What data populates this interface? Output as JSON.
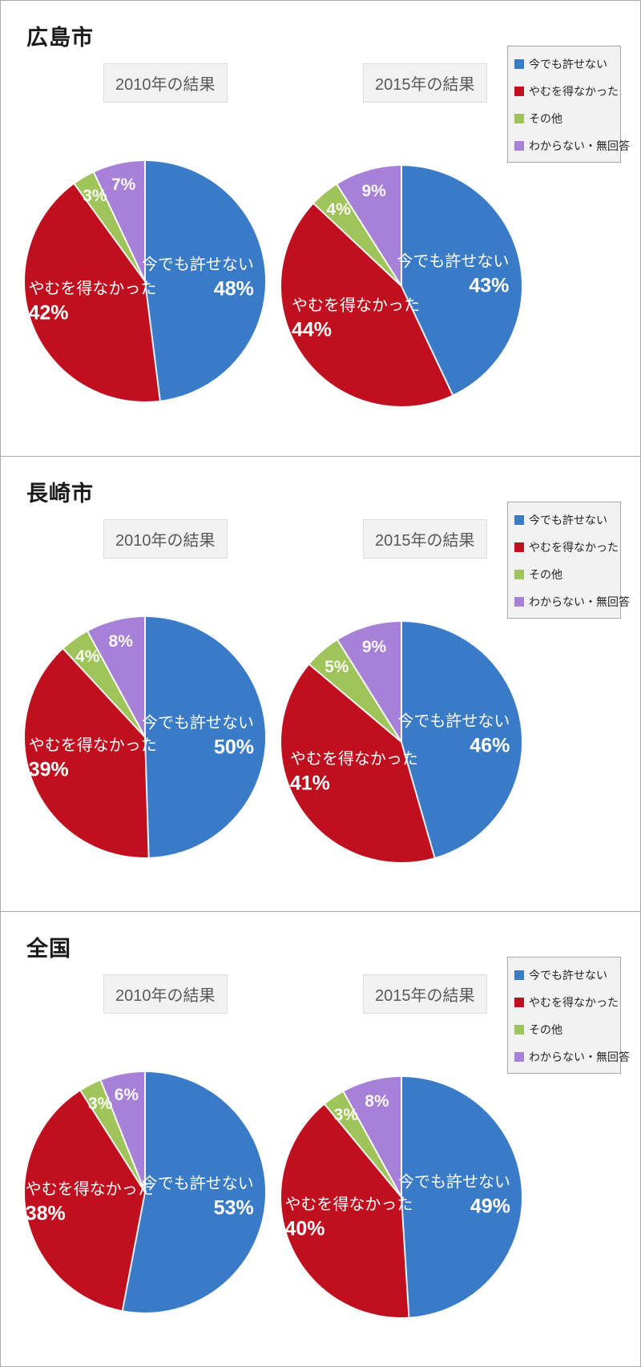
{
  "colors": {
    "blue": "#3a7bc8",
    "red": "#c00f1e",
    "green": "#9ec45a",
    "purple": "#a780d8",
    "panel_border": "#a9a9a9",
    "yearbox_bg": "#f2f2f2",
    "legend_bg": "#f2f2f2",
    "slice_label": "#ffffff"
  },
  "legend": {
    "items": [
      {
        "key": "blue",
        "label": "今でも許せない"
      },
      {
        "key": "red",
        "label": "やむを得なかった"
      },
      {
        "key": "green",
        "label": "その他"
      },
      {
        "key": "purple",
        "label": "わからない・無回答"
      }
    ]
  },
  "sections": [
    {
      "title": "広島市",
      "charts": [
        {
          "year_label": "2010年の結果",
          "slices": [
            {
              "label": "今でも許せない",
              "value": 48,
              "pct": "48%"
            },
            {
              "label": "やむを得なかった",
              "value": 42,
              "pct": "42%"
            },
            {
              "label": "その他",
              "value": 3,
              "pct": "3%"
            },
            {
              "label": "わからない・無回答",
              "value": 7,
              "pct": "7%"
            }
          ]
        },
        {
          "year_label": "2015年の結果",
          "slices": [
            {
              "label": "今でも許せない",
              "value": 43,
              "pct": "43%"
            },
            {
              "label": "やむを得なかった",
              "value": 44,
              "pct": "44%"
            },
            {
              "label": "その他",
              "value": 4,
              "pct": "4%"
            },
            {
              "label": "わからない・無回答",
              "value": 9,
              "pct": "9%"
            }
          ]
        }
      ]
    },
    {
      "title": "長崎市",
      "charts": [
        {
          "year_label": "2010年の結果",
          "slices": [
            {
              "label": "今でも許せない",
              "value": 50,
              "pct": "50%"
            },
            {
              "label": "やむを得なかった",
              "value": 39,
              "pct": "39%"
            },
            {
              "label": "その他",
              "value": 4,
              "pct": "4%"
            },
            {
              "label": "わからない・無回答",
              "value": 8,
              "pct": "8%"
            }
          ]
        },
        {
          "year_label": "2015年の結果",
          "slices": [
            {
              "label": "今でも許せない",
              "value": 46,
              "pct": "46%"
            },
            {
              "label": "やむを得なかった",
              "value": 41,
              "pct": "41%"
            },
            {
              "label": "その他",
              "value": 5,
              "pct": "5%"
            },
            {
              "label": "わからない・無回答",
              "value": 9,
              "pct": "9%"
            }
          ]
        }
      ]
    },
    {
      "title": "全国",
      "charts": [
        {
          "year_label": "2010年の結果",
          "slices": [
            {
              "label": "今でも許せない",
              "value": 53,
              "pct": "53%"
            },
            {
              "label": "やむを得なかった",
              "value": 38,
              "pct": "38%"
            },
            {
              "label": "その他",
              "value": 3,
              "pct": "3%"
            },
            {
              "label": "わからない・無回答",
              "value": 6,
              "pct": "6%"
            }
          ]
        },
        {
          "year_label": "2015年の結果",
          "slices": [
            {
              "label": "今でも許せない",
              "value": 49,
              "pct": "49%"
            },
            {
              "label": "やむを得なかった",
              "value": 40,
              "pct": "40%"
            },
            {
              "label": "その他",
              "value": 3,
              "pct": "3%"
            },
            {
              "label": "わからない・無回答",
              "value": 8,
              "pct": "8%"
            }
          ]
        }
      ]
    }
  ],
  "chart_data": [
    {
      "type": "pie",
      "section": "広島市",
      "title": "2010年の結果",
      "labels": [
        "今でも許せない",
        "やむを得なかった",
        "その他",
        "わからない・無回答"
      ],
      "values": [
        48,
        42,
        3,
        7
      ],
      "colors": [
        "#3a7bc8",
        "#c00f1e",
        "#9ec45a",
        "#a780d8"
      ],
      "start_angle": "top",
      "direction": "clockwise",
      "legend_position": "right"
    },
    {
      "type": "pie",
      "section": "広島市",
      "title": "2015年の結果",
      "labels": [
        "今でも許せない",
        "やむを得なかった",
        "その他",
        "わからない・無回答"
      ],
      "values": [
        43,
        44,
        4,
        9
      ],
      "colors": [
        "#3a7bc8",
        "#c00f1e",
        "#9ec45a",
        "#a780d8"
      ],
      "start_angle": "top",
      "direction": "clockwise",
      "legend_position": "right"
    },
    {
      "type": "pie",
      "section": "長崎市",
      "title": "2010年の結果",
      "labels": [
        "今でも許せない",
        "やむを得なかった",
        "その他",
        "わからない・無回答"
      ],
      "values": [
        50,
        39,
        4,
        8
      ],
      "colors": [
        "#3a7bc8",
        "#c00f1e",
        "#9ec45a",
        "#a780d8"
      ],
      "start_angle": "top",
      "direction": "clockwise",
      "legend_position": "right"
    },
    {
      "type": "pie",
      "section": "長崎市",
      "title": "2015年の結果",
      "labels": [
        "今でも許せない",
        "やむを得なかった",
        "その他",
        "わからない・無回答"
      ],
      "values": [
        46,
        41,
        5,
        9
      ],
      "colors": [
        "#3a7bc8",
        "#c00f1e",
        "#9ec45a",
        "#a780d8"
      ],
      "start_angle": "top",
      "direction": "clockwise",
      "legend_position": "right"
    },
    {
      "type": "pie",
      "section": "全国",
      "title": "2010年の結果",
      "labels": [
        "今でも許せない",
        "やむを得なかった",
        "その他",
        "わからない・無回答"
      ],
      "values": [
        53,
        38,
        3,
        6
      ],
      "colors": [
        "#3a7bc8",
        "#c00f1e",
        "#9ec45a",
        "#a780d8"
      ],
      "start_angle": "top",
      "direction": "clockwise",
      "legend_position": "right"
    },
    {
      "type": "pie",
      "section": "全国",
      "title": "2015年の結果",
      "labels": [
        "今でも許せない",
        "やむを得なかった",
        "その他",
        "わからない・無回答"
      ],
      "values": [
        49,
        40,
        3,
        8
      ],
      "colors": [
        "#3a7bc8",
        "#c00f1e",
        "#9ec45a",
        "#a780d8"
      ],
      "start_angle": "top",
      "direction": "clockwise",
      "legend_position": "right"
    }
  ]
}
